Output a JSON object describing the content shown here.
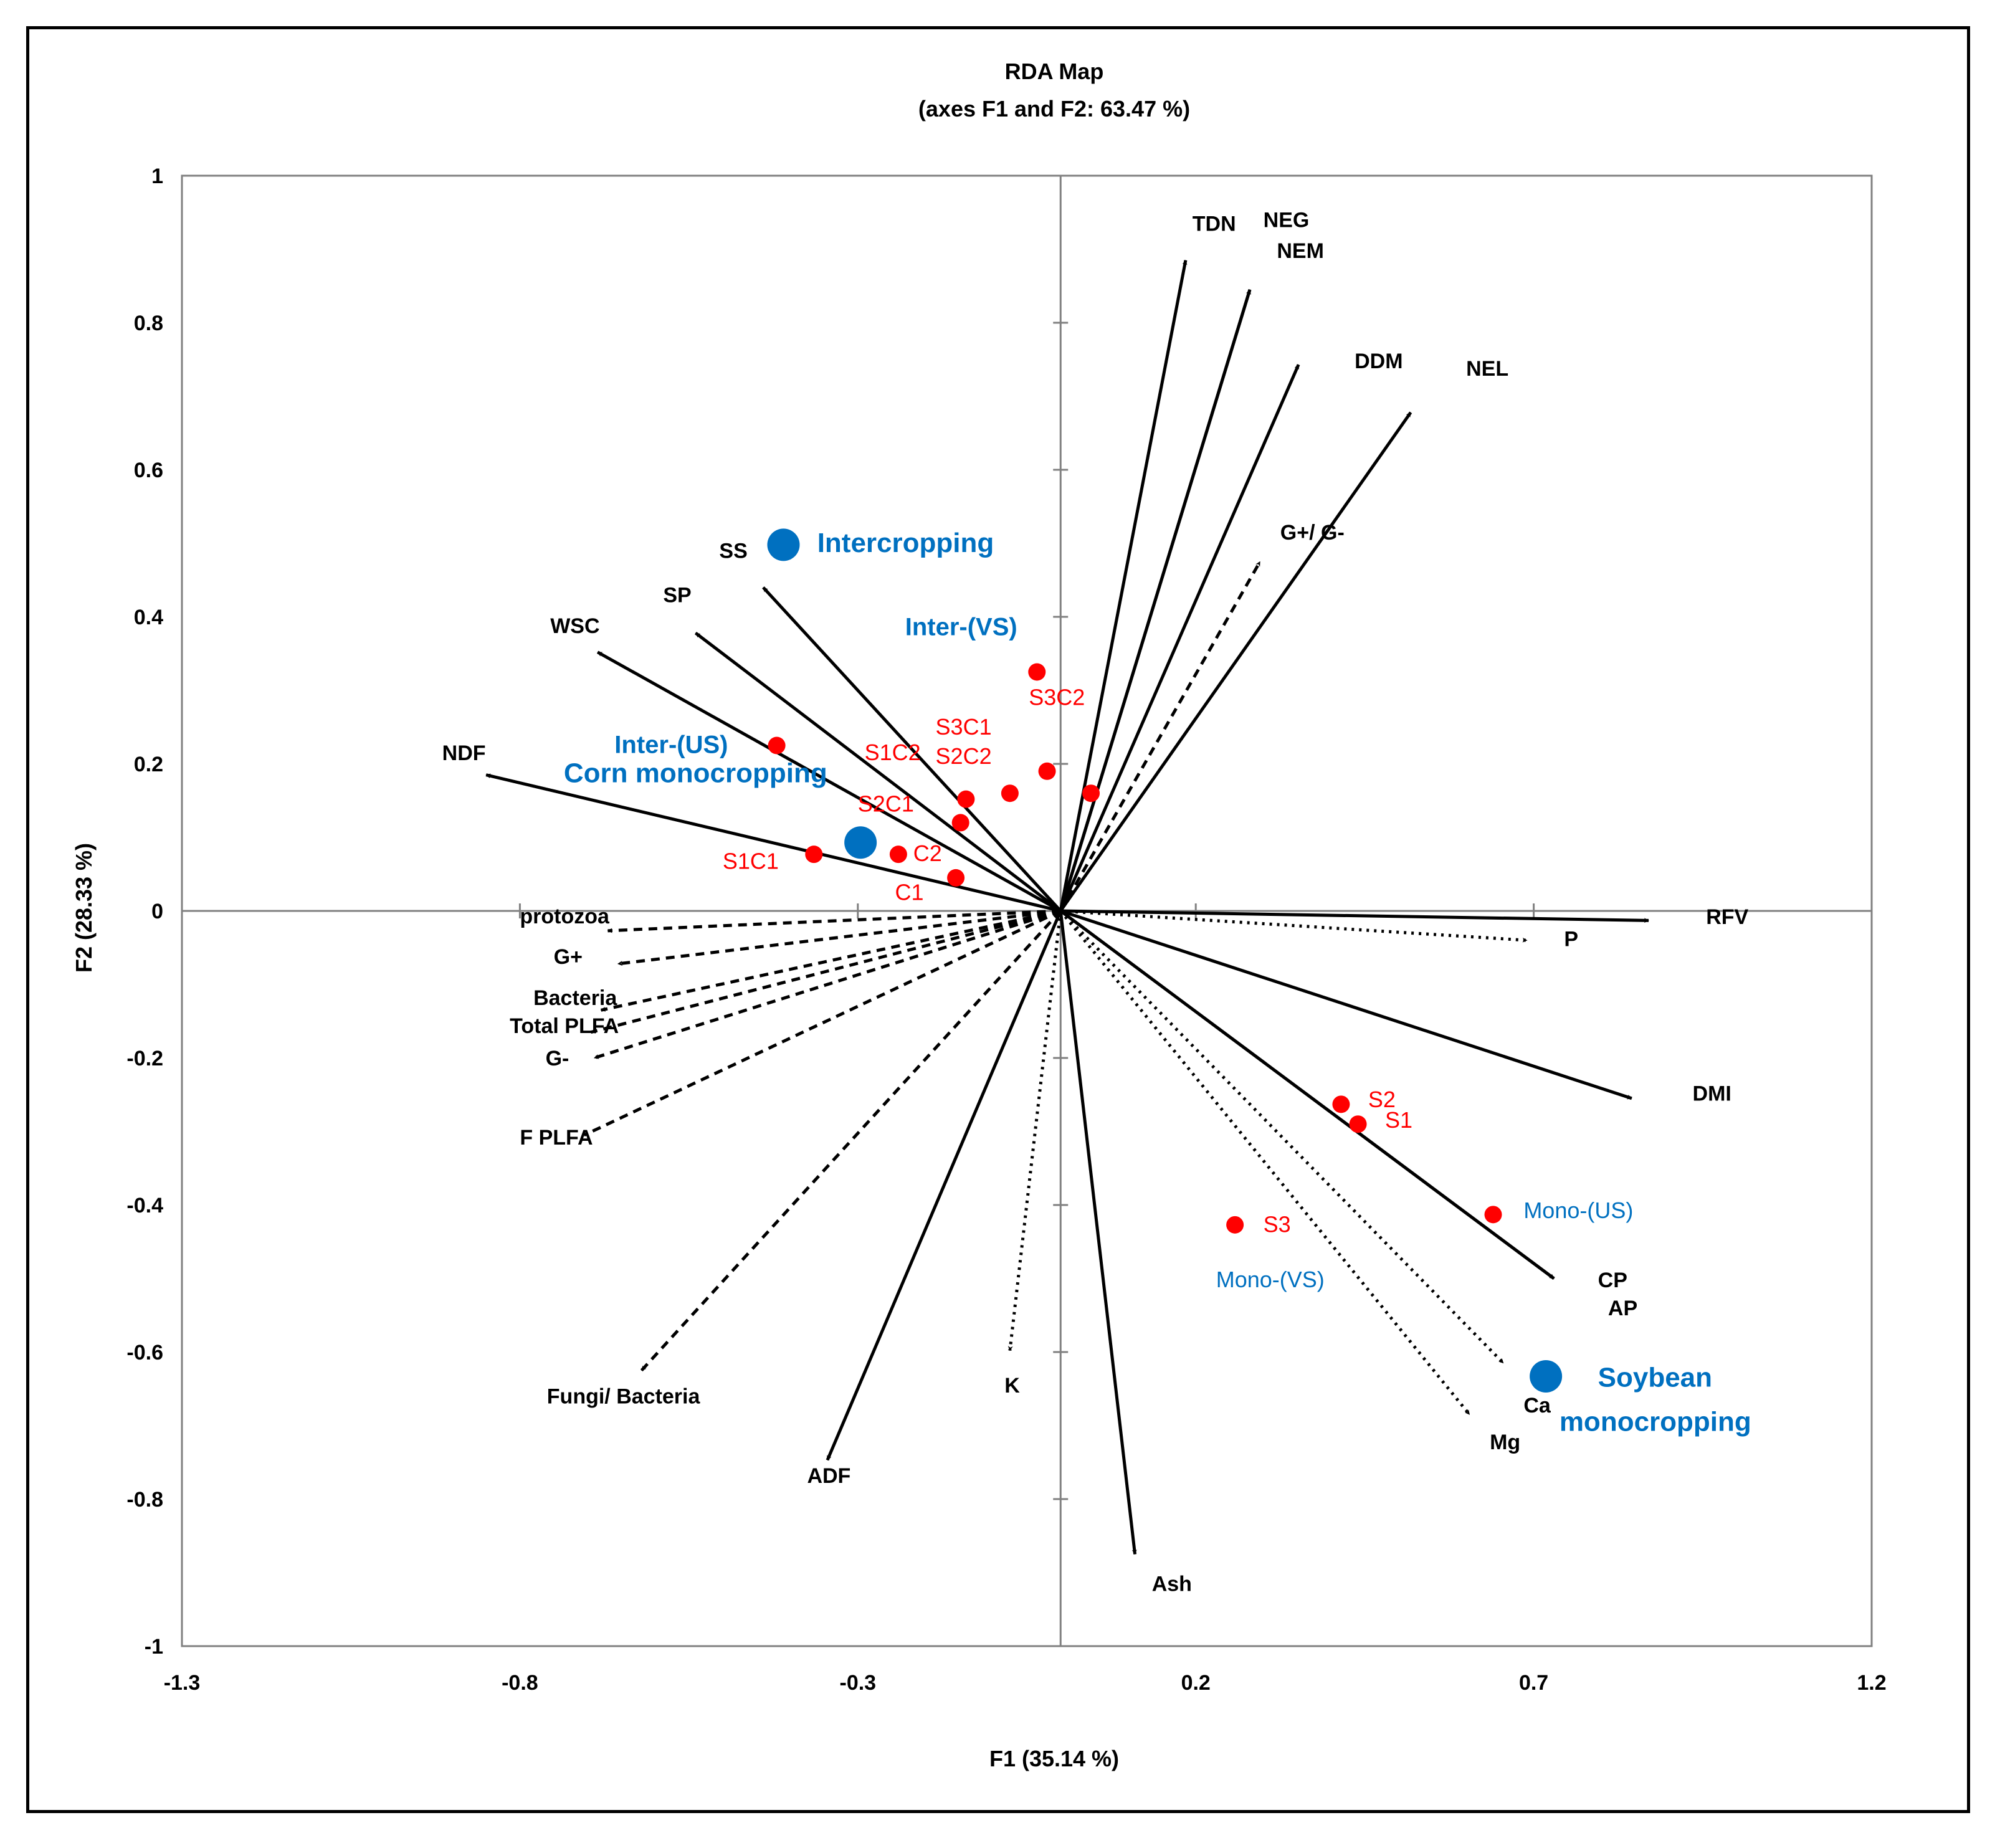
{
  "chart_data": {
    "type": "scatter",
    "title": "RDA Map",
    "subtitle": "(axes F1 and F2: 63.47 %)",
    "xlabel": "F1 (35.14 %)",
    "ylabel": "F2 (28.33 %)",
    "xlim": [
      -1.3,
      1.2
    ],
    "ylim": [
      -1,
      1
    ],
    "x_ticks": [
      -1.3,
      -0.8,
      -0.3,
      0.2,
      0.7,
      1.2
    ],
    "y_ticks": [
      1,
      0.8,
      0.6,
      0.4,
      0.2,
      0,
      -0.2,
      -0.4,
      -0.6,
      -0.8,
      -1
    ],
    "x_tick_labels": [
      "-1.3",
      "-0.8",
      "-0.3",
      "0.2",
      "0.7",
      "1.2"
    ],
    "y_tick_labels": [
      "1",
      "0.8",
      "0.6",
      "0.4",
      "0.2",
      "0",
      "-0.2",
      "-0.4",
      "-0.6",
      "-0.8",
      "-1"
    ],
    "colors": {
      "vector": "#000000",
      "observation": "#ff0000",
      "observation_label": "#ff0000",
      "centroid": "#0070c0",
      "blue_label": "#0070c0",
      "axis": "#808080"
    },
    "solid_vectors": [
      {
        "name": "TDN",
        "x": 0.185,
        "y": 0.885,
        "lx": 0.195,
        "ly": 0.925
      },
      {
        "name": "NEG",
        "x": 0.28,
        "y": 0.845,
        "lx": 0.3,
        "ly": 0.93
      },
      {
        "name": "NEM",
        "x": 0.28,
        "y": 0.845,
        "lx": 0.32,
        "ly": 0.888
      },
      {
        "name": "DDM",
        "x": 0.352,
        "y": 0.743,
        "lx": 0.435,
        "ly": 0.738
      },
      {
        "name": "NEL",
        "x": 0.518,
        "y": 0.678,
        "lx": 0.6,
        "ly": 0.728
      },
      {
        "name": "SS",
        "x": -0.44,
        "y": 0.44,
        "lx": -0.505,
        "ly": 0.48
      },
      {
        "name": "SP",
        "x": -0.54,
        "y": 0.378,
        "lx": -0.588,
        "ly": 0.42
      },
      {
        "name": "WSC",
        "x": -0.685,
        "y": 0.352,
        "lx": -0.755,
        "ly": 0.378
      },
      {
        "name": "NDF",
        "x": -0.85,
        "y": 0.185,
        "lx": -0.915,
        "ly": 0.205
      },
      {
        "name": "RFV",
        "x": 0.87,
        "y": -0.013,
        "lx": 0.955,
        "ly": -0.018
      },
      {
        "name": "DMI",
        "x": 0.845,
        "y": -0.255,
        "lx": 0.935,
        "ly": -0.258
      },
      {
        "name": "CP",
        "x": 0.73,
        "y": -0.5,
        "lx": 0.795,
        "ly": -0.512
      },
      {
        "name": "AP",
        "x": 0.73,
        "y": -0.5,
        "lx": 0.81,
        "ly": -0.55
      },
      {
        "name": "ADF",
        "x": -0.345,
        "y": -0.747,
        "lx": -0.375,
        "ly": -0.778
      },
      {
        "name": "Ash",
        "x": 0.11,
        "y": -0.875,
        "lx": 0.135,
        "ly": -0.925
      }
    ],
    "dashed_vectors": [
      {
        "name": "G+/ G-",
        "x": 0.295,
        "y": 0.475,
        "lx": 0.325,
        "ly": 0.505
      },
      {
        "name": "protozoa",
        "x": -0.67,
        "y": -0.027,
        "lx": -0.8,
        "ly": -0.017
      },
      {
        "name": "G+",
        "x": -0.655,
        "y": -0.072,
        "lx": -0.75,
        "ly": -0.072
      },
      {
        "name": "Bacteria",
        "x": -0.68,
        "y": -0.135,
        "lx": -0.78,
        "ly": -0.128
      },
      {
        "name": "Total PLFA",
        "x": -0.695,
        "y": -0.165,
        "lx": -0.815,
        "ly": -0.166
      },
      {
        "name": "G-",
        "x": -0.69,
        "y": -0.2,
        "lx": -0.762,
        "ly": -0.21
      },
      {
        "name": "F PLFA",
        "x": -0.705,
        "y": -0.305,
        "lx": -0.8,
        "ly": -0.318
      },
      {
        "name": "Fungi/ Bacteria",
        "x": -0.62,
        "y": -0.625,
        "lx": -0.76,
        "ly": -0.67
      }
    ],
    "dotted_vectors": [
      {
        "name": "P",
        "x": 0.69,
        "y": -0.04,
        "lx": 0.745,
        "ly": -0.048
      },
      {
        "name": "K",
        "x": -0.075,
        "y": -0.598,
        "lx": -0.083,
        "ly": -0.655
      },
      {
        "name": "Ca",
        "x": 0.655,
        "y": -0.615,
        "lx": 0.685,
        "ly": -0.682
      },
      {
        "name": "Mg",
        "x": 0.605,
        "y": -0.685,
        "lx": 0.635,
        "ly": -0.732
      }
    ],
    "observations": [
      {
        "name": "S3C2",
        "x": -0.035,
        "y": 0.325,
        "lx": -0.047,
        "ly": 0.28
      },
      {
        "name": "S3C1",
        "x": -0.14,
        "y": 0.152,
        "lx": -0.185,
        "ly": 0.24
      },
      {
        "name": "S2C2",
        "x": -0.075,
        "y": 0.16,
        "lx": -0.185,
        "ly": 0.2
      },
      {
        "name": "",
        "x": -0.02,
        "y": 0.19,
        "lx": 0,
        "ly": 0
      },
      {
        "name": "",
        "x": 0.045,
        "y": 0.16,
        "lx": 0,
        "ly": 0
      },
      {
        "name": "S1C2",
        "x": -0.42,
        "y": 0.225,
        "lx": -0.29,
        "ly": 0.205
      },
      {
        "name": "S2C1",
        "x": -0.148,
        "y": 0.12,
        "lx": -0.3,
        "ly": 0.135
      },
      {
        "name": "C2",
        "x": -0.24,
        "y": 0.077,
        "lx": -0.218,
        "ly": 0.068
      },
      {
        "name": "C1",
        "x": -0.155,
        "y": 0.045,
        "lx": -0.245,
        "ly": 0.015
      },
      {
        "name": "S1C1",
        "x": -0.365,
        "y": 0.077,
        "lx": -0.5,
        "ly": 0.057
      },
      {
        "name": "S2",
        "x": 0.415,
        "y": -0.263,
        "lx": 0.455,
        "ly": -0.267
      },
      {
        "name": "S1",
        "x": 0.44,
        "y": -0.29,
        "lx": 0.48,
        "ly": -0.295
      },
      {
        "name": "S3",
        "x": 0.258,
        "y": -0.427,
        "lx": 0.3,
        "ly": -0.437
      },
      {
        "name": "",
        "x": 0.64,
        "y": -0.413,
        "lx": 0,
        "ly": 0
      }
    ],
    "centroids": [
      {
        "name": "Intercropping",
        "x": -0.41,
        "y": 0.498
      },
      {
        "name": "Corn monocropping",
        "x": -0.296,
        "y": 0.093
      },
      {
        "name": "Soybean monocropping",
        "x": 0.718,
        "y": -0.633
      }
    ],
    "blue_labels": [
      {
        "name": "Intercropping",
        "x": -0.36,
        "y": 0.488,
        "size": "large"
      },
      {
        "name": "Inter-(VS)",
        "x": -0.23,
        "y": 0.375,
        "size": "medium"
      },
      {
        "name": "Inter-(US)",
        "x": -0.66,
        "y": 0.215,
        "size": "medium"
      },
      {
        "name": "Corn monocropping",
        "x": -0.735,
        "y": 0.175,
        "size": "large"
      },
      {
        "name": "Mono-(US)",
        "x": 0.685,
        "y": -0.418,
        "size": "small"
      },
      {
        "name": "Mono-(VS)",
        "x": 0.23,
        "y": -0.512,
        "size": "small"
      },
      {
        "name": "Soybean",
        "x": 0.795,
        "y": -0.647,
        "size": "large"
      },
      {
        "name": "monocropping",
        "x": 0.738,
        "y": -0.707,
        "size": "large"
      }
    ]
  }
}
